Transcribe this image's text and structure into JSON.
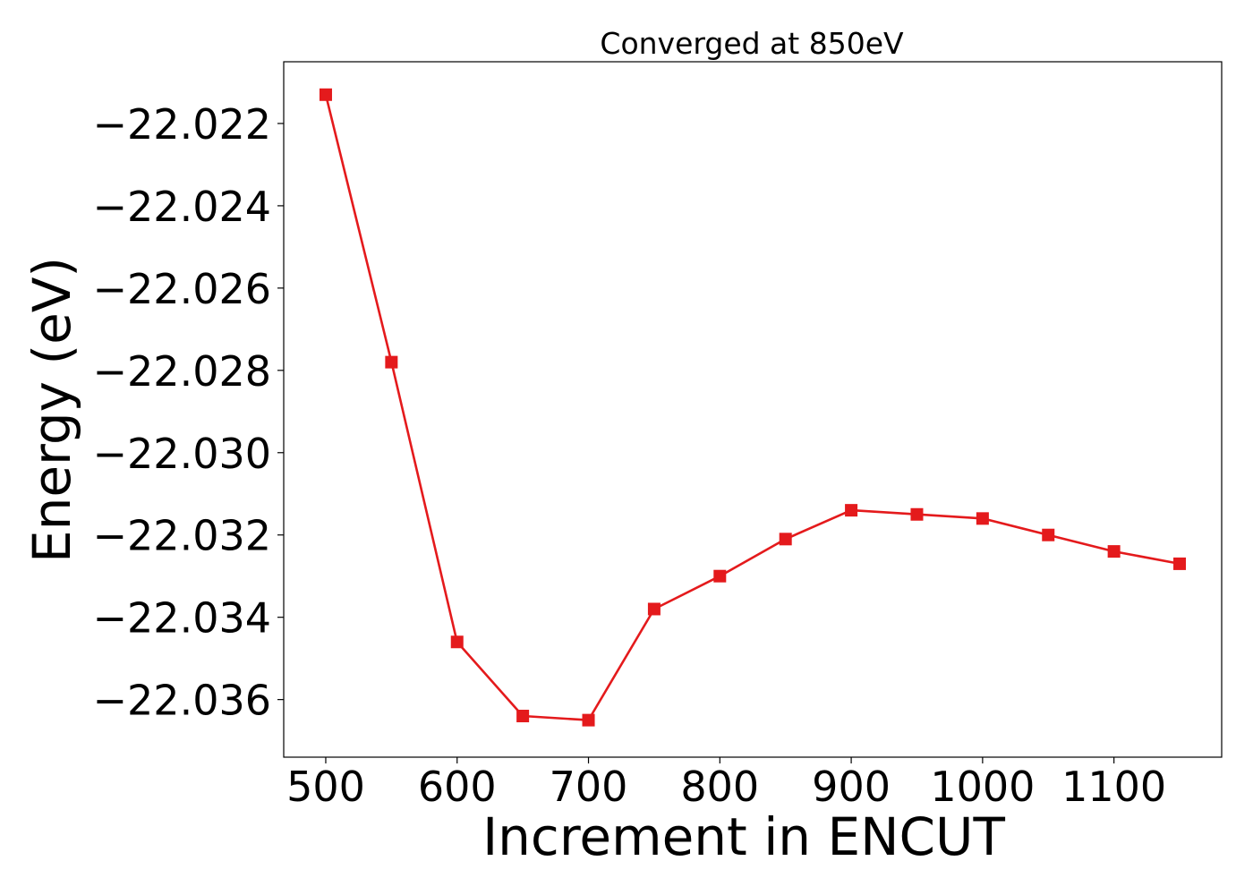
{
  "chart_data": {
    "type": "line",
    "title": "Converged at 850eV",
    "xlabel": "Increment in ENCUT",
    "ylabel": "Energy (eV)",
    "xlim": [
      468,
      1182
    ],
    "ylim": [
      -22.0374,
      -22.0205
    ],
    "xticks": [
      500,
      600,
      700,
      800,
      900,
      1000,
      1100
    ],
    "xtick_labels": [
      "500",
      "600",
      "700",
      "800",
      "900",
      "1000",
      "1100"
    ],
    "yticks": [
      -22.022,
      -22.024,
      -22.026,
      -22.028,
      -22.03,
      -22.032,
      -22.034,
      -22.036
    ],
    "ytick_labels": [
      "−22.022",
      "−22.024",
      "−22.026",
      "−22.028",
      "−22.030",
      "−22.032",
      "−22.034",
      "−22.036"
    ],
    "grid": false,
    "legend": "none",
    "series": [
      {
        "color": "#e41a1c",
        "marker": "square",
        "x": [
          500,
          550,
          600,
          650,
          700,
          750,
          800,
          850,
          900,
          950,
          1000,
          1050,
          1100,
          1150
        ],
        "y": [
          -22.0213,
          -22.0278,
          -22.0346,
          -22.0364,
          -22.0365,
          -22.0338,
          -22.033,
          -22.0321,
          -22.0314,
          -22.0315,
          -22.0316,
          -22.032,
          -22.0324,
          -22.0327
        ]
      }
    ]
  }
}
